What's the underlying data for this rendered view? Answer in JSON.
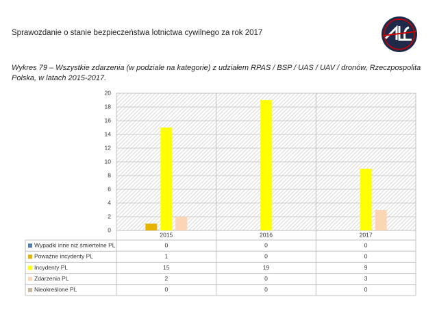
{
  "header": {
    "title": "Sprawozdanie o stanie bezpieczeństwa lotnictwa cywilnego za rok 2017"
  },
  "caption": "Wykres 79 – Wszystkie zdarzenia (w podziale na kategorie) z udziałem RPAS / BSP / UAS / UAV / dronów, Rzeczpospolita Polska, w latach 2015-2017.",
  "chart_data": {
    "type": "bar",
    "categories": [
      "2015",
      "2016",
      "2017"
    ],
    "series": [
      {
        "name": "Wypadki inne niż śmiertelne PL",
        "color": "#4f81bd",
        "values": [
          0,
          0,
          0
        ]
      },
      {
        "name": "Poważne incydenty PL",
        "color": "#e6b400",
        "values": [
          1,
          0,
          0
        ]
      },
      {
        "name": "Incydenty PL",
        "color": "#ffff00",
        "values": [
          15,
          19,
          9
        ]
      },
      {
        "name": "Zdarzenia PL",
        "color": "#fcd5b4",
        "values": [
          2,
          0,
          3
        ]
      },
      {
        "name": "Nieokreślone PL",
        "color": "#c9b79c",
        "values": [
          0,
          0,
          0
        ]
      }
    ],
    "ylim": [
      0,
      20
    ],
    "yticks": [
      0,
      2,
      4,
      6,
      8,
      10,
      12,
      14,
      16,
      18,
      20
    ],
    "grid": true
  }
}
